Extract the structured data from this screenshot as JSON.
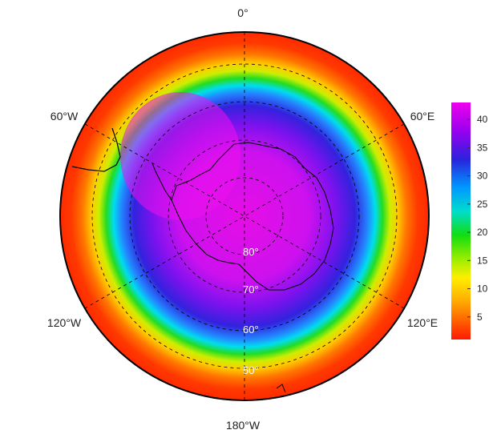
{
  "map": {
    "projection": "south-polar-stereographic",
    "longitude_labels": [
      {
        "id": "lon-0",
        "text": "0°"
      },
      {
        "id": "lon-60e",
        "text": "60°E"
      },
      {
        "id": "lon-120e",
        "text": "120°E"
      },
      {
        "id": "lon-180w",
        "text": "180°W"
      },
      {
        "id": "lon-120w",
        "text": "120°W"
      },
      {
        "id": "lon-60w",
        "text": "60°W"
      }
    ],
    "latitude_labels": [
      "80°",
      "70°",
      "60°",
      "50°"
    ],
    "field_colors": {
      "outer": "#ff3300",
      "band_orange": "#ff8800",
      "band_yellow": "#ffee00",
      "band_green": "#33dd00",
      "band_cyan": "#00ccee",
      "band_blue": "#2244ee",
      "inner_purple": "#7711ee",
      "core_magenta": "#dd11ee"
    }
  },
  "colorbar": {
    "ticks": [
      "40",
      "35",
      "30",
      "25",
      "20",
      "15",
      "10",
      "5"
    ],
    "tick_values": [
      40,
      35,
      30,
      25,
      20,
      15,
      10,
      5
    ],
    "range": [
      1,
      43
    ],
    "colors": [
      "#dd00ee",
      "#8800ee",
      "#2233ee",
      "#00aaff",
      "#00eeee",
      "#22dd00",
      "#aaee00",
      "#ffee00",
      "#ff8800",
      "#ff2200"
    ]
  }
}
